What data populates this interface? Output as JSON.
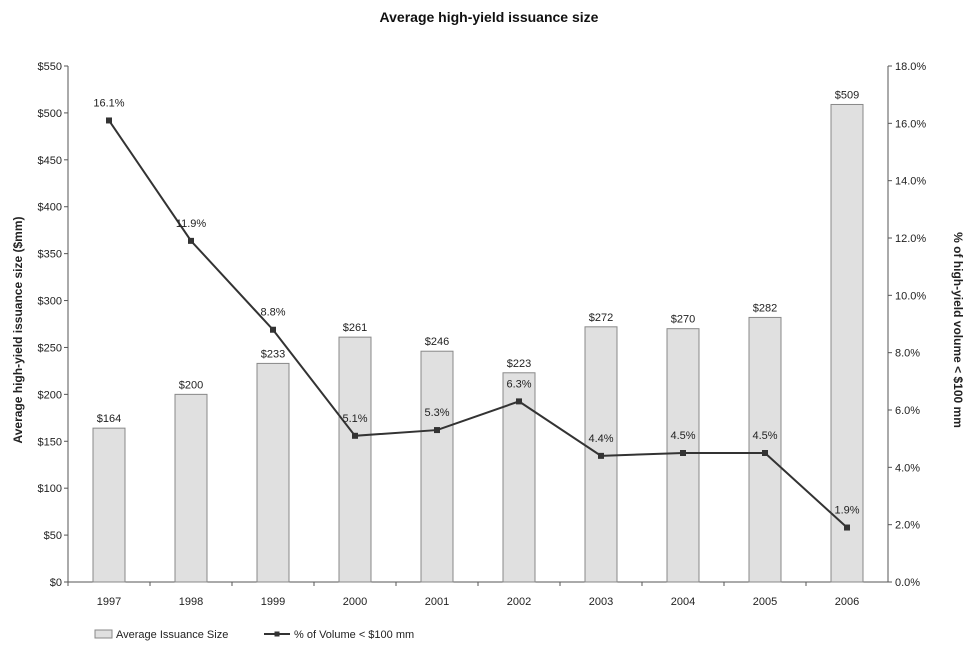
{
  "chart_data": {
    "type": "bar",
    "title": "Average high-yield issuance size",
    "categories": [
      "1997",
      "1998",
      "1999",
      "2000",
      "2001",
      "2002",
      "2003",
      "2004",
      "2005",
      "2006"
    ],
    "ylabel": "Average high-yield issuance size ($mm)",
    "y2label": "% of high-yield volume < $100 mm",
    "ylim": [
      0,
      550
    ],
    "y2lim": [
      0,
      18
    ],
    "yticks": [
      "$0",
      "$50",
      "$100",
      "$150",
      "$200",
      "$250",
      "$300",
      "$350",
      "$400",
      "$450",
      "$500",
      "$550"
    ],
    "y2ticks": [
      "0.0%",
      "2.0%",
      "4.0%",
      "6.0%",
      "8.0%",
      "10.0%",
      "12.0%",
      "14.0%",
      "16.0%",
      "18.0%"
    ],
    "series": [
      {
        "name": "Average Issuance Size",
        "type": "bar",
        "axis": "left",
        "values": [
          164,
          200,
          233,
          261,
          246,
          223,
          272,
          270,
          282,
          509
        ],
        "labels": [
          "$164",
          "$200",
          "$233",
          "$261",
          "$246",
          "$223",
          "$272",
          "$270",
          "$282",
          "$509"
        ],
        "color": "#e0e0e0"
      },
      {
        "name": "% of Volume < $100 mm",
        "type": "line",
        "axis": "right",
        "values": [
          16.1,
          11.9,
          8.8,
          5.1,
          5.3,
          6.3,
          4.4,
          4.5,
          4.5,
          1.9
        ],
        "labels": [
          "16.1%",
          "11.9%",
          "8.8%",
          "5.1%",
          "5.3%",
          "6.3%",
          "4.4%",
          "4.5%",
          "4.5%",
          "1.9%"
        ],
        "color": "#333333"
      }
    ],
    "legend": "bottom-left",
    "grid": false
  }
}
